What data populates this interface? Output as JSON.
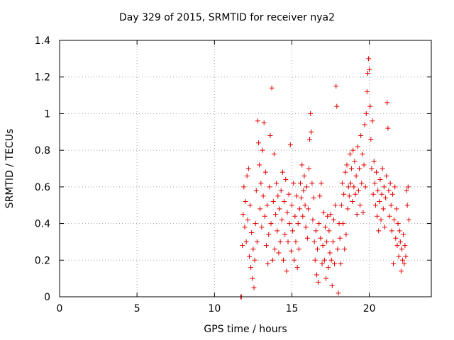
{
  "chart_data": {
    "type": "scatter",
    "title": "Day 329 of 2015, SRMTID for receiver nya2",
    "xlabel": "GPS time / hours",
    "ylabel": "SRMTID / TECUs",
    "xlim": [
      0,
      24
    ],
    "ylim": [
      0,
      1.4
    ],
    "xticks": [
      0,
      5,
      10,
      15,
      20
    ],
    "xtick_labels": [
      "0",
      "5",
      "10",
      "15",
      "20"
    ],
    "yticks": [
      0,
      0.2,
      0.4,
      0.6,
      0.8,
      1.0,
      1.2,
      1.4
    ],
    "ytick_labels": [
      "0",
      "0.2",
      "0.4",
      "0.6",
      "0.8",
      "1",
      "1.2",
      "1.4"
    ],
    "grid": true,
    "marker": "plus",
    "series": [
      {
        "name": "nya2",
        "color": "#e00000",
        "points": [
          [
            11.7,
            0.0
          ],
          [
            11.72,
            0.0
          ],
          [
            11.74,
            0.0
          ],
          [
            11.8,
            0.28
          ],
          [
            11.85,
            0.45
          ],
          [
            11.9,
            0.6
          ],
          [
            11.95,
            0.38
          ],
          [
            12.0,
            0.52
          ],
          [
            12.05,
            0.3
          ],
          [
            12.1,
            0.66
          ],
          [
            12.15,
            0.42
          ],
          [
            12.2,
            0.7
          ],
          [
            12.25,
            0.22
          ],
          [
            12.3,
            0.5
          ],
          [
            12.35,
            0.16
          ],
          [
            12.4,
            0.35
          ],
          [
            12.45,
            0.1
          ],
          [
            12.5,
            0.26
          ],
          [
            12.55,
            0.05
          ],
          [
            12.6,
            0.2
          ],
          [
            12.65,
            0.4
          ],
          [
            12.7,
            0.58
          ],
          [
            12.75,
            0.3
          ],
          [
            12.8,
            0.96
          ],
          [
            12.85,
            0.84
          ],
          [
            12.9,
            0.72
          ],
          [
            12.95,
            0.48
          ],
          [
            13.0,
            0.62
          ],
          [
            13.05,
            0.38
          ],
          [
            13.1,
            0.8
          ],
          [
            13.15,
            0.55
          ],
          [
            13.2,
            0.95
          ],
          [
            13.25,
            0.44
          ],
          [
            13.3,
            0.68
          ],
          [
            13.35,
            0.28
          ],
          [
            13.4,
            0.5
          ],
          [
            13.45,
            0.18
          ],
          [
            13.5,
            0.34
          ],
          [
            13.55,
            0.6
          ],
          [
            13.6,
            0.88
          ],
          [
            13.65,
            0.4
          ],
          [
            13.7,
            1.14
          ],
          [
            13.75,
            0.2
          ],
          [
            13.8,
            0.52
          ],
          [
            13.85,
            0.78
          ],
          [
            13.9,
            0.26
          ],
          [
            13.95,
            0.45
          ],
          [
            14.0,
            0.62
          ],
          [
            14.05,
            0.36
          ],
          [
            14.1,
            0.55
          ],
          [
            14.15,
            0.24
          ],
          [
            14.2,
            0.48
          ],
          [
            14.25,
            0.3
          ],
          [
            14.3,
            0.58
          ],
          [
            14.35,
            0.42
          ],
          [
            14.4,
            0.68
          ],
          [
            14.45,
            0.2
          ],
          [
            14.5,
            0.52
          ],
          [
            14.55,
            0.34
          ],
          [
            14.6,
            0.64
          ],
          [
            14.65,
            0.14
          ],
          [
            14.7,
            0.46
          ],
          [
            14.75,
            0.3
          ],
          [
            14.8,
            0.56
          ],
          [
            14.85,
            0.4
          ],
          [
            14.9,
            0.83
          ],
          [
            14.95,
            0.25
          ],
          [
            15.0,
            0.5
          ],
          [
            15.05,
            0.36
          ],
          [
            15.1,
            0.62
          ],
          [
            15.15,
            0.2
          ],
          [
            15.2,
            0.44
          ],
          [
            15.25,
            0.3
          ],
          [
            15.3,
            0.55
          ],
          [
            15.35,
            0.16
          ],
          [
            15.4,
            0.4
          ],
          [
            15.45,
            0.26
          ],
          [
            15.5,
            0.48
          ],
          [
            15.55,
            0.62
          ],
          [
            15.6,
            0.54
          ],
          [
            15.65,
            0.72
          ],
          [
            15.7,
            0.44
          ],
          [
            15.75,
            0.58
          ],
          [
            15.8,
            0.66
          ],
          [
            15.85,
            0.5
          ],
          [
            15.9,
            0.38
          ],
          [
            15.95,
            0.6
          ],
          [
            16.0,
            0.32
          ],
          [
            16.05,
            0.48
          ],
          [
            16.1,
            0.7
          ],
          [
            16.15,
            0.86
          ],
          [
            16.2,
            1.0
          ],
          [
            16.25,
            0.9
          ],
          [
            16.3,
            0.62
          ],
          [
            16.35,
            0.42
          ],
          [
            16.4,
            0.54
          ],
          [
            16.45,
            0.3
          ],
          [
            16.5,
            0.2
          ],
          [
            16.55,
            0.36
          ],
          [
            16.6,
            0.12
          ],
          [
            16.65,
            0.26
          ],
          [
            16.7,
            0.08
          ],
          [
            16.75,
            0.4
          ],
          [
            16.8,
            0.55
          ],
          [
            16.85,
            0.32
          ],
          [
            16.9,
            0.62
          ],
          [
            16.95,
            0.18
          ],
          [
            17.0,
            0.28
          ],
          [
            17.05,
            0.46
          ],
          [
            17.1,
            0.2
          ],
          [
            17.15,
            0.38
          ],
          [
            17.2,
            0.1
          ],
          [
            17.25,
            0.3
          ],
          [
            17.3,
            0.44
          ],
          [
            17.35,
            0.16
          ],
          [
            17.4,
            0.36
          ],
          [
            17.45,
            0.24
          ],
          [
            17.5,
            0.45
          ],
          [
            17.55,
            0.2
          ],
          [
            17.6,
            0.06
          ],
          [
            17.65,
            0.3
          ],
          [
            17.7,
            0.42
          ],
          [
            17.75,
            0.18
          ],
          [
            17.8,
            0.5
          ],
          [
            17.85,
            1.15
          ],
          [
            17.9,
            1.04
          ],
          [
            17.95,
            0.26
          ],
          [
            18.0,
            0.02
          ],
          [
            18.05,
            0.4
          ],
          [
            18.1,
            0.32
          ],
          [
            18.15,
            0.18
          ],
          [
            18.2,
            0.5
          ],
          [
            18.25,
            0.62
          ],
          [
            18.3,
            0.4
          ],
          [
            18.35,
            0.56
          ],
          [
            18.4,
            0.26
          ],
          [
            18.45,
            0.68
          ],
          [
            18.5,
            0.34
          ],
          [
            18.55,
            0.72
          ],
          [
            18.6,
            0.48
          ],
          [
            18.65,
            0.6
          ],
          [
            18.7,
            0.55
          ],
          [
            18.75,
            0.78
          ],
          [
            18.8,
            0.62
          ],
          [
            18.85,
            0.7
          ],
          [
            18.9,
            0.52
          ],
          [
            18.95,
            0.8
          ],
          [
            19.0,
            0.6
          ],
          [
            19.05,
            0.74
          ],
          [
            19.1,
            0.56
          ],
          [
            19.15,
            0.66
          ],
          [
            19.2,
            0.45
          ],
          [
            19.25,
            0.82
          ],
          [
            19.3,
            0.58
          ],
          [
            19.35,
            0.7
          ],
          [
            19.4,
            0.5
          ],
          [
            19.45,
            0.88
          ],
          [
            19.5,
            0.62
          ],
          [
            19.55,
            0.78
          ],
          [
            19.6,
            0.46
          ],
          [
            19.65,
            0.72
          ],
          [
            19.7,
            0.94
          ],
          [
            19.75,
            0.6
          ],
          [
            19.8,
            1.0
          ],
          [
            19.85,
            1.12
          ],
          [
            19.9,
            1.22
          ],
          [
            19.95,
            1.3
          ],
          [
            20.0,
            1.24
          ],
          [
            20.05,
            1.04
          ],
          [
            20.1,
            0.86
          ],
          [
            20.15,
            0.7
          ],
          [
            20.2,
            0.96
          ],
          [
            20.25,
            0.56
          ],
          [
            20.3,
            0.74
          ],
          [
            20.35,
            0.62
          ],
          [
            20.4,
            0.5
          ],
          [
            20.45,
            0.68
          ],
          [
            20.5,
            0.44
          ],
          [
            20.55,
            0.58
          ],
          [
            20.6,
            0.36
          ],
          [
            20.65,
            0.52
          ],
          [
            20.7,
            0.64
          ],
          [
            20.75,
            0.42
          ],
          [
            20.8,
            0.56
          ],
          [
            20.85,
            0.7
          ],
          [
            20.9,
            0.48
          ],
          [
            20.95,
            0.6
          ],
          [
            21.0,
            0.38
          ],
          [
            21.05,
            0.54
          ],
          [
            21.1,
            0.66
          ],
          [
            21.15,
            1.06
          ],
          [
            21.2,
            0.92
          ],
          [
            21.25,
            0.58
          ],
          [
            21.3,
            0.44
          ],
          [
            21.35,
            0.62
          ],
          [
            21.4,
            0.5
          ],
          [
            21.45,
            0.36
          ],
          [
            21.5,
            0.56
          ],
          [
            21.55,
            0.18
          ],
          [
            21.6,
            0.42
          ],
          [
            21.65,
            0.6
          ],
          [
            21.7,
            0.32
          ],
          [
            21.75,
            0.48
          ],
          [
            21.8,
            0.28
          ],
          [
            21.85,
            0.4
          ],
          [
            21.9,
            0.22
          ],
          [
            21.95,
            0.36
          ],
          [
            22.0,
            0.3
          ],
          [
            22.05,
            0.14
          ],
          [
            22.1,
            0.26
          ],
          [
            22.15,
            0.2
          ],
          [
            22.2,
            0.34
          ],
          [
            22.25,
            0.18
          ],
          [
            22.3,
            0.28
          ],
          [
            22.35,
            0.22
          ],
          [
            22.4,
            0.58
          ],
          [
            22.45,
            0.5
          ],
          [
            22.5,
            0.6
          ],
          [
            22.55,
            0.42
          ]
        ]
      }
    ]
  }
}
